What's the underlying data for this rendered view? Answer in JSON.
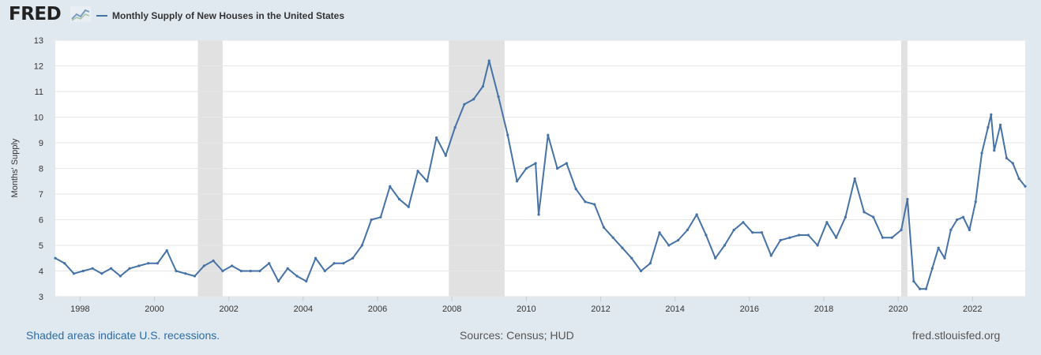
{
  "header": {
    "logo": "FRED",
    "logo_icon": "fred-trend-graph-icon",
    "series_title": "Monthly Supply of New Houses in the United States"
  },
  "footer": {
    "recession_note": "Shaded areas indicate U.S. recessions.",
    "sources": "Sources: Census; HUD",
    "website": "fred.stlouisfed.org"
  },
  "colors": {
    "line": "#4572a7",
    "recession": "#e1e1e1",
    "background": "#e1e9f0",
    "plot_background": "#ffffff"
  },
  "chart_data": {
    "type": "line",
    "title": "",
    "xlabel": "",
    "ylabel": "Months' Supply",
    "xlim": [
      "1997-05",
      "2023-06"
    ],
    "ylim": [
      3,
      13
    ],
    "yticks": [
      3,
      4,
      5,
      6,
      7,
      8,
      9,
      10,
      11,
      12,
      13
    ],
    "xticks": [
      "1998",
      "2000",
      "2002",
      "2004",
      "2006",
      "2008",
      "2010",
      "2012",
      "2014",
      "2016",
      "2018",
      "2020",
      "2022"
    ],
    "grid": "horizontal",
    "legend": "top-left",
    "recessions": [
      [
        "2001-03",
        "2001-11"
      ],
      [
        "2007-12",
        "2009-06"
      ],
      [
        "2020-02",
        "2020-04"
      ]
    ],
    "series": [
      {
        "name": "Monthly Supply of New Houses in the United States",
        "x": [
          "1997-05",
          "1997-08",
          "1997-11",
          "1998-02",
          "1998-05",
          "1998-08",
          "1998-11",
          "1999-02",
          "1999-05",
          "1999-08",
          "1999-11",
          "2000-02",
          "2000-05",
          "2000-08",
          "2000-11",
          "2001-02",
          "2001-05",
          "2001-08",
          "2001-11",
          "2002-02",
          "2002-05",
          "2002-08",
          "2002-11",
          "2003-02",
          "2003-05",
          "2003-08",
          "2003-11",
          "2004-02",
          "2004-05",
          "2004-08",
          "2004-11",
          "2005-02",
          "2005-05",
          "2005-08",
          "2005-11",
          "2006-02",
          "2006-05",
          "2006-08",
          "2006-11",
          "2007-02",
          "2007-05",
          "2007-08",
          "2007-11",
          "2008-02",
          "2008-05",
          "2008-08",
          "2008-11",
          "2009-01",
          "2009-04",
          "2009-07",
          "2009-10",
          "2010-01",
          "2010-04",
          "2010-05",
          "2010-08",
          "2010-11",
          "2011-02",
          "2011-05",
          "2011-08",
          "2011-11",
          "2012-02",
          "2012-05",
          "2012-08",
          "2012-11",
          "2013-02",
          "2013-05",
          "2013-08",
          "2013-11",
          "2014-02",
          "2014-05",
          "2014-08",
          "2014-11",
          "2015-02",
          "2015-05",
          "2015-08",
          "2015-11",
          "2016-02",
          "2016-05",
          "2016-08",
          "2016-11",
          "2017-02",
          "2017-05",
          "2017-08",
          "2017-11",
          "2018-02",
          "2018-05",
          "2018-08",
          "2018-11",
          "2019-02",
          "2019-05",
          "2019-08",
          "2019-11",
          "2020-02",
          "2020-04",
          "2020-06",
          "2020-08",
          "2020-10",
          "2020-12",
          "2021-02",
          "2021-04",
          "2021-06",
          "2021-08",
          "2021-10",
          "2021-12",
          "2022-02",
          "2022-04",
          "2022-06",
          "2022-07",
          "2022-08",
          "2022-10",
          "2022-12",
          "2023-02",
          "2023-04",
          "2023-06"
        ],
        "values": [
          4.5,
          4.3,
          3.9,
          4.0,
          4.1,
          3.9,
          4.1,
          3.8,
          4.1,
          4.2,
          4.3,
          4.3,
          4.8,
          4.0,
          3.9,
          3.8,
          4.2,
          4.4,
          4.0,
          4.2,
          4.0,
          4.0,
          4.0,
          4.3,
          3.6,
          4.1,
          3.8,
          3.6,
          4.5,
          4.0,
          4.3,
          4.3,
          4.5,
          5.0,
          6.0,
          6.1,
          7.3,
          6.8,
          6.5,
          7.9,
          7.5,
          9.2,
          8.5,
          9.6,
          10.5,
          10.7,
          11.2,
          12.2,
          10.8,
          9.3,
          7.5,
          8.0,
          8.2,
          6.2,
          9.3,
          8.0,
          8.2,
          7.2,
          6.7,
          6.6,
          5.7,
          5.3,
          4.9,
          4.5,
          4.0,
          4.3,
          5.5,
          5.0,
          5.2,
          5.6,
          6.2,
          5.4,
          4.5,
          5.0,
          5.6,
          5.9,
          5.5,
          5.5,
          4.6,
          5.2,
          5.3,
          5.4,
          5.4,
          5.0,
          5.9,
          5.3,
          6.1,
          7.6,
          6.3,
          6.1,
          5.3,
          5.3,
          5.6,
          6.8,
          3.6,
          3.3,
          3.3,
          4.1,
          4.9,
          4.5,
          5.6,
          6.0,
          6.1,
          5.6,
          6.7,
          8.6,
          9.6,
          10.1,
          8.7,
          9.7,
          8.4,
          8.2,
          7.6,
          7.3
        ]
      }
    ]
  }
}
